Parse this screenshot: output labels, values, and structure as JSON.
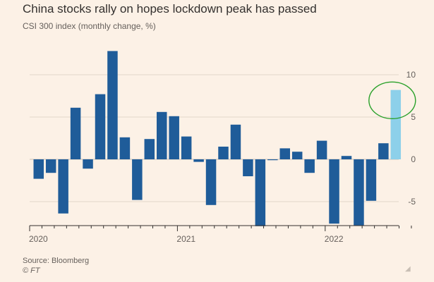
{
  "chart_data": {
    "type": "bar",
    "title": "China stocks rally on hopes lockdown peak has passed",
    "subtitle": "CSI 300 index (monthly change, %)",
    "xlabel": "",
    "ylabel": "",
    "ylim": [
      -8,
      12
    ],
    "yticks": [
      10,
      5,
      0,
      -5
    ],
    "xtick_labels": [
      "2020",
      "2021",
      "2022"
    ],
    "grid": true,
    "colors": {
      "bar": "#1f5c99",
      "highlight": "#8dd0ea",
      "grid": "#e2d6c9",
      "annotation_circle": "#2aa12a",
      "axis_text": "#66605c"
    },
    "categories": [
      "2020-01",
      "2020-02",
      "2020-03",
      "2020-04",
      "2020-05",
      "2020-06",
      "2020-07",
      "2020-08",
      "2020-09",
      "2020-10",
      "2020-11",
      "2020-12",
      "2021-01",
      "2021-02",
      "2021-03",
      "2021-04",
      "2021-05",
      "2021-06",
      "2021-07",
      "2021-08",
      "2021-09",
      "2021-10",
      "2021-11",
      "2021-12",
      "2022-01",
      "2022-02",
      "2022-03",
      "2022-04",
      "2022-05",
      "2022-06",
      "2022-07"
    ],
    "values": [
      -2.3,
      -1.6,
      -6.4,
      6.1,
      -1.1,
      7.7,
      12.8,
      2.6,
      -4.8,
      2.4,
      5.6,
      5.1,
      2.7,
      -0.3,
      -5.4,
      1.5,
      4.1,
      -2.0,
      -7.9,
      -0.1,
      1.3,
      0.9,
      -1.6,
      2.2,
      -7.6,
      0.4,
      -7.8,
      -4.9,
      1.9,
      8.2,
      null
    ],
    "highlight_index": 29,
    "annotation": "circle"
  },
  "footer": {
    "source": "Source: Bloomberg",
    "credit": "© FT"
  }
}
